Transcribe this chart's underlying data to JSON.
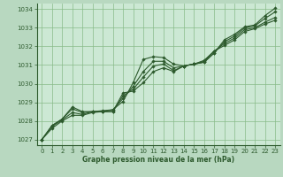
{
  "bg_color": "#b8d8c0",
  "plot_bg_color": "#cce8d4",
  "grid_color": "#88bb88",
  "line_color": "#2d5a2d",
  "text_color": "#2d5a2d",
  "xlabel": "Graphe pression niveau de la mer (hPa)",
  "xlim": [
    -0.5,
    23.5
  ],
  "ylim": [
    1026.7,
    1034.3
  ],
  "xticks": [
    0,
    1,
    2,
    3,
    4,
    5,
    6,
    7,
    8,
    9,
    10,
    11,
    12,
    13,
    14,
    15,
    16,
    17,
    18,
    19,
    20,
    21,
    22,
    23
  ],
  "yticks": [
    1027,
    1028,
    1029,
    1030,
    1031,
    1032,
    1033,
    1034
  ],
  "series": [
    [
      1027.0,
      1027.75,
      1028.1,
      1028.75,
      1028.5,
      1028.5,
      1028.55,
      1028.6,
      1029.05,
      1030.05,
      1031.3,
      1031.45,
      1031.4,
      1031.05,
      1030.95,
      1031.05,
      1031.15,
      1031.65,
      1032.35,
      1032.65,
      1033.05,
      1033.15,
      1033.65,
      1034.05
    ],
    [
      1027.0,
      1027.75,
      1028.1,
      1028.65,
      1028.45,
      1028.5,
      1028.5,
      1028.6,
      1029.2,
      1029.85,
      1030.65,
      1031.2,
      1031.2,
      1030.85,
      1030.95,
      1031.05,
      1031.15,
      1031.65,
      1032.25,
      1032.55,
      1033.0,
      1033.1,
      1033.5,
      1033.85
    ],
    [
      1027.0,
      1027.7,
      1028.05,
      1028.45,
      1028.35,
      1028.5,
      1028.5,
      1028.5,
      1029.35,
      1029.7,
      1030.35,
      1030.95,
      1031.05,
      1030.7,
      1030.95,
      1031.05,
      1031.2,
      1031.75,
      1032.15,
      1032.45,
      1032.9,
      1033.0,
      1033.3,
      1033.55
    ],
    [
      1027.0,
      1027.6,
      1028.0,
      1028.3,
      1028.3,
      1028.45,
      1028.5,
      1028.5,
      1029.5,
      1029.6,
      1030.05,
      1030.65,
      1030.85,
      1030.65,
      1030.95,
      1031.05,
      1031.25,
      1031.75,
      1032.05,
      1032.35,
      1032.8,
      1032.95,
      1033.2,
      1033.4
    ]
  ],
  "marker": "D",
  "markersize": 1.8,
  "linewidth": 0.8,
  "tick_labelsize": 5.0,
  "xlabel_fontsize": 5.5
}
